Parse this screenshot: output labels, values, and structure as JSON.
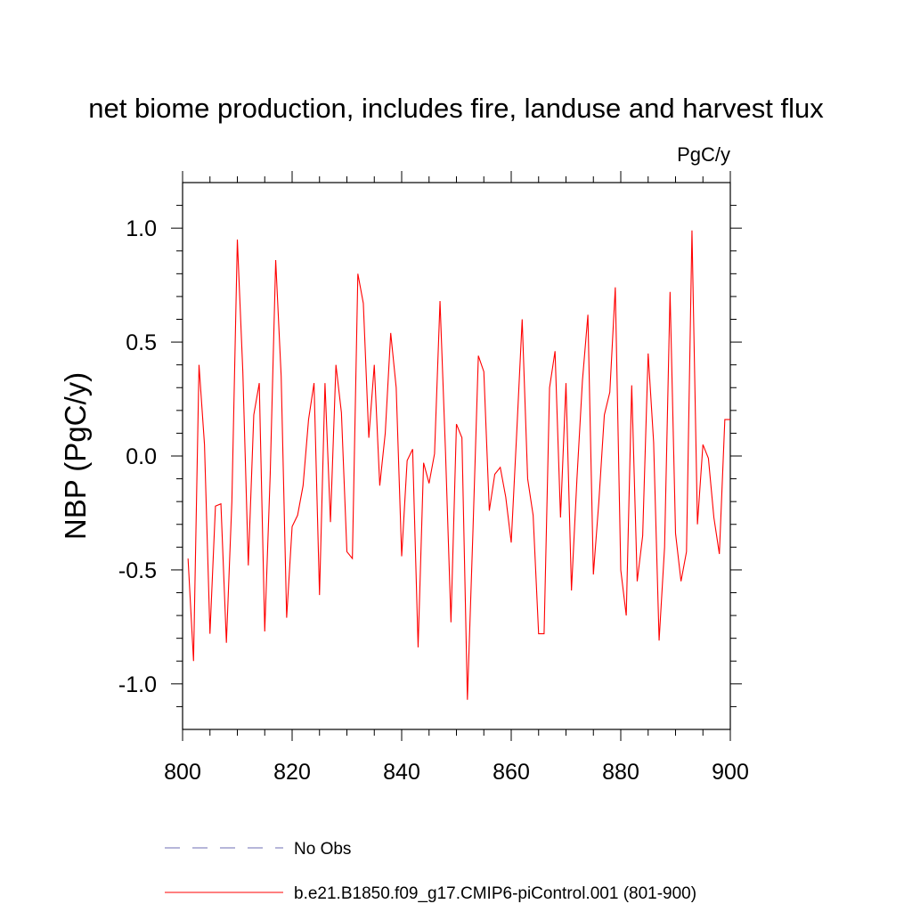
{
  "chart_data": {
    "type": "line",
    "title": "net biome production, includes fire, landuse and harvest flux",
    "units_label": "PgC/y",
    "ylabel": "NBP  (PgC/y)",
    "xlabel": "",
    "xlim": [
      800,
      900
    ],
    "ylim": [
      -1.2,
      1.2
    ],
    "x_major_ticks": [
      800,
      820,
      840,
      860,
      880,
      900
    ],
    "x_tick_labels": [
      "800",
      "820",
      "840",
      "860",
      "880",
      "900"
    ],
    "x_minor_step": 5,
    "y_major_ticks": [
      -1.0,
      -0.5,
      0.0,
      0.5,
      1.0
    ],
    "y_tick_labels": [
      "-1.0",
      "-0.5",
      "0.0",
      "0.5",
      "1.0"
    ],
    "y_minor_step": 0.1,
    "series": [
      {
        "name": "b.e21.B1850.f09_g17.CMIP6-piControl.001 (801-900)",
        "color": "#ff0000",
        "x": [
          801,
          802,
          803,
          804,
          805,
          806,
          807,
          808,
          809,
          810,
          811,
          812,
          813,
          814,
          815,
          816,
          817,
          818,
          819,
          820,
          821,
          822,
          823,
          824,
          825,
          826,
          827,
          828,
          829,
          830,
          831,
          832,
          833,
          834,
          835,
          836,
          837,
          838,
          839,
          840,
          841,
          842,
          843,
          844,
          845,
          846,
          847,
          848,
          849,
          850,
          851,
          852,
          853,
          854,
          855,
          856,
          857,
          858,
          859,
          860,
          861,
          862,
          863,
          864,
          865,
          866,
          867,
          868,
          869,
          870,
          871,
          872,
          873,
          874,
          875,
          876,
          877,
          878,
          879,
          880,
          881,
          882,
          883,
          884,
          885,
          886,
          887,
          888,
          889,
          890,
          891,
          892,
          893,
          894,
          895,
          896,
          897,
          898,
          899,
          900
        ],
        "values": [
          -0.45,
          -0.9,
          0.4,
          0.05,
          -0.78,
          -0.22,
          -0.21,
          -0.82,
          -0.2,
          0.95,
          0.37,
          -0.48,
          0.18,
          0.32,
          -0.77,
          -0.08,
          0.86,
          0.35,
          -0.71,
          -0.31,
          -0.26,
          -0.13,
          0.16,
          0.32,
          -0.61,
          0.32,
          -0.29,
          0.4,
          0.19,
          -0.42,
          -0.45,
          0.8,
          0.67,
          0.08,
          0.4,
          -0.13,
          0.1,
          0.54,
          0.3,
          -0.44,
          -0.02,
          0.03,
          -0.84,
          -0.03,
          -0.12,
          0.01,
          0.68,
          0.02,
          -0.73,
          0.14,
          0.08,
          -1.07,
          -0.34,
          0.44,
          0.37,
          -0.24,
          -0.08,
          -0.05,
          -0.18,
          -0.38,
          0.1,
          0.6,
          -0.1,
          -0.26,
          -0.78,
          -0.78,
          0.3,
          0.46,
          -0.27,
          0.32,
          -0.59,
          -0.1,
          0.33,
          0.62,
          -0.52,
          -0.2,
          0.18,
          0.28,
          0.74,
          -0.5,
          -0.7,
          0.31,
          -0.55,
          -0.35,
          0.45,
          0.06,
          -0.81,
          -0.4,
          0.72,
          -0.34,
          -0.55,
          -0.42,
          0.99,
          -0.3,
          0.05,
          -0.01,
          -0.27,
          -0.43,
          0.16,
          0.16
        ]
      }
    ],
    "legend": {
      "position": "bottom",
      "entries": [
        {
          "label": "No Obs",
          "color": "#6e6eb4",
          "style": "dashed"
        },
        {
          "label": "b.e21.B1850.f09_g17.CMIP6-piControl.001 (801-900)",
          "color": "#ff0000",
          "style": "solid"
        }
      ]
    }
  }
}
